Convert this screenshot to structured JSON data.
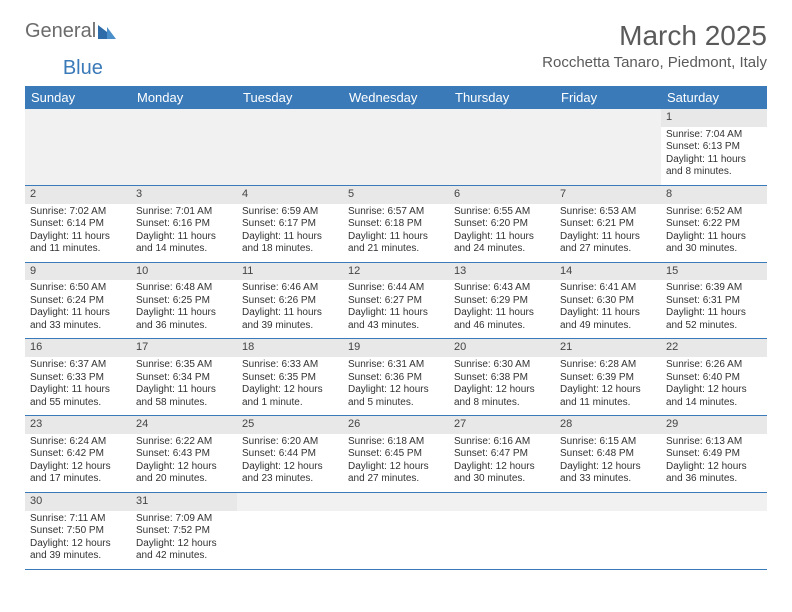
{
  "brand": {
    "part1": "General",
    "part2": "Blue"
  },
  "title": "March 2025",
  "location": "Rocchetta Tanaro, Piedmont, Italy",
  "columns": [
    "Sunday",
    "Monday",
    "Tuesday",
    "Wednesday",
    "Thursday",
    "Friday",
    "Saturday"
  ],
  "header_bg": "#3a7ab8",
  "header_fg": "#ffffff",
  "daynum_bg": "#e8e8e8",
  "border_color": "#3a7ab8",
  "weeks": [
    [
      null,
      null,
      null,
      null,
      null,
      null,
      {
        "n": "1",
        "sunrise": "Sunrise: 7:04 AM",
        "sunset": "Sunset: 6:13 PM",
        "daylight": "Daylight: 11 hours and 8 minutes."
      }
    ],
    [
      {
        "n": "2",
        "sunrise": "Sunrise: 7:02 AM",
        "sunset": "Sunset: 6:14 PM",
        "daylight": "Daylight: 11 hours and 11 minutes."
      },
      {
        "n": "3",
        "sunrise": "Sunrise: 7:01 AM",
        "sunset": "Sunset: 6:16 PM",
        "daylight": "Daylight: 11 hours and 14 minutes."
      },
      {
        "n": "4",
        "sunrise": "Sunrise: 6:59 AM",
        "sunset": "Sunset: 6:17 PM",
        "daylight": "Daylight: 11 hours and 18 minutes."
      },
      {
        "n": "5",
        "sunrise": "Sunrise: 6:57 AM",
        "sunset": "Sunset: 6:18 PM",
        "daylight": "Daylight: 11 hours and 21 minutes."
      },
      {
        "n": "6",
        "sunrise": "Sunrise: 6:55 AM",
        "sunset": "Sunset: 6:20 PM",
        "daylight": "Daylight: 11 hours and 24 minutes."
      },
      {
        "n": "7",
        "sunrise": "Sunrise: 6:53 AM",
        "sunset": "Sunset: 6:21 PM",
        "daylight": "Daylight: 11 hours and 27 minutes."
      },
      {
        "n": "8",
        "sunrise": "Sunrise: 6:52 AM",
        "sunset": "Sunset: 6:22 PM",
        "daylight": "Daylight: 11 hours and 30 minutes."
      }
    ],
    [
      {
        "n": "9",
        "sunrise": "Sunrise: 6:50 AM",
        "sunset": "Sunset: 6:24 PM",
        "daylight": "Daylight: 11 hours and 33 minutes."
      },
      {
        "n": "10",
        "sunrise": "Sunrise: 6:48 AM",
        "sunset": "Sunset: 6:25 PM",
        "daylight": "Daylight: 11 hours and 36 minutes."
      },
      {
        "n": "11",
        "sunrise": "Sunrise: 6:46 AM",
        "sunset": "Sunset: 6:26 PM",
        "daylight": "Daylight: 11 hours and 39 minutes."
      },
      {
        "n": "12",
        "sunrise": "Sunrise: 6:44 AM",
        "sunset": "Sunset: 6:27 PM",
        "daylight": "Daylight: 11 hours and 43 minutes."
      },
      {
        "n": "13",
        "sunrise": "Sunrise: 6:43 AM",
        "sunset": "Sunset: 6:29 PM",
        "daylight": "Daylight: 11 hours and 46 minutes."
      },
      {
        "n": "14",
        "sunrise": "Sunrise: 6:41 AM",
        "sunset": "Sunset: 6:30 PM",
        "daylight": "Daylight: 11 hours and 49 minutes."
      },
      {
        "n": "15",
        "sunrise": "Sunrise: 6:39 AM",
        "sunset": "Sunset: 6:31 PM",
        "daylight": "Daylight: 11 hours and 52 minutes."
      }
    ],
    [
      {
        "n": "16",
        "sunrise": "Sunrise: 6:37 AM",
        "sunset": "Sunset: 6:33 PM",
        "daylight": "Daylight: 11 hours and 55 minutes."
      },
      {
        "n": "17",
        "sunrise": "Sunrise: 6:35 AM",
        "sunset": "Sunset: 6:34 PM",
        "daylight": "Daylight: 11 hours and 58 minutes."
      },
      {
        "n": "18",
        "sunrise": "Sunrise: 6:33 AM",
        "sunset": "Sunset: 6:35 PM",
        "daylight": "Daylight: 12 hours and 1 minute."
      },
      {
        "n": "19",
        "sunrise": "Sunrise: 6:31 AM",
        "sunset": "Sunset: 6:36 PM",
        "daylight": "Daylight: 12 hours and 5 minutes."
      },
      {
        "n": "20",
        "sunrise": "Sunrise: 6:30 AM",
        "sunset": "Sunset: 6:38 PM",
        "daylight": "Daylight: 12 hours and 8 minutes."
      },
      {
        "n": "21",
        "sunrise": "Sunrise: 6:28 AM",
        "sunset": "Sunset: 6:39 PM",
        "daylight": "Daylight: 12 hours and 11 minutes."
      },
      {
        "n": "22",
        "sunrise": "Sunrise: 6:26 AM",
        "sunset": "Sunset: 6:40 PM",
        "daylight": "Daylight: 12 hours and 14 minutes."
      }
    ],
    [
      {
        "n": "23",
        "sunrise": "Sunrise: 6:24 AM",
        "sunset": "Sunset: 6:42 PM",
        "daylight": "Daylight: 12 hours and 17 minutes."
      },
      {
        "n": "24",
        "sunrise": "Sunrise: 6:22 AM",
        "sunset": "Sunset: 6:43 PM",
        "daylight": "Daylight: 12 hours and 20 minutes."
      },
      {
        "n": "25",
        "sunrise": "Sunrise: 6:20 AM",
        "sunset": "Sunset: 6:44 PM",
        "daylight": "Daylight: 12 hours and 23 minutes."
      },
      {
        "n": "26",
        "sunrise": "Sunrise: 6:18 AM",
        "sunset": "Sunset: 6:45 PM",
        "daylight": "Daylight: 12 hours and 27 minutes."
      },
      {
        "n": "27",
        "sunrise": "Sunrise: 6:16 AM",
        "sunset": "Sunset: 6:47 PM",
        "daylight": "Daylight: 12 hours and 30 minutes."
      },
      {
        "n": "28",
        "sunrise": "Sunrise: 6:15 AM",
        "sunset": "Sunset: 6:48 PM",
        "daylight": "Daylight: 12 hours and 33 minutes."
      },
      {
        "n": "29",
        "sunrise": "Sunrise: 6:13 AM",
        "sunset": "Sunset: 6:49 PM",
        "daylight": "Daylight: 12 hours and 36 minutes."
      }
    ],
    [
      {
        "n": "30",
        "sunrise": "Sunrise: 7:11 AM",
        "sunset": "Sunset: 7:50 PM",
        "daylight": "Daylight: 12 hours and 39 minutes."
      },
      {
        "n": "31",
        "sunrise": "Sunrise: 7:09 AM",
        "sunset": "Sunset: 7:52 PM",
        "daylight": "Daylight: 12 hours and 42 minutes."
      },
      null,
      null,
      null,
      null,
      null
    ]
  ]
}
